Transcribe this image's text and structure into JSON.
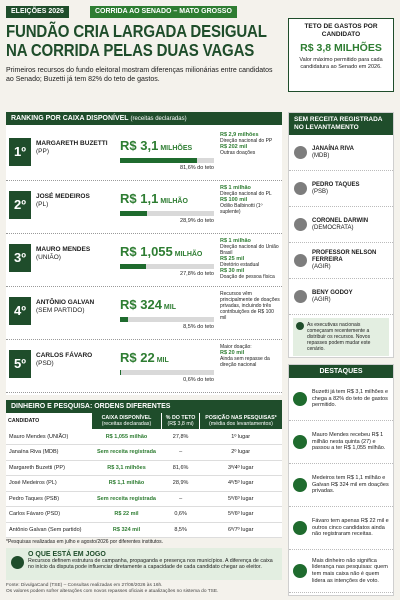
{
  "header": {
    "tag": "ELEIÇÕES 2026",
    "section": "CORRIDA AO SENADO – MATO GROSSO",
    "title": "FUNDÃO CRIA LARGADA DESIGUAL NA CORRIDA PELAS DUAS VAGAS",
    "subtitle": "Primeiros recursos do fundo eleitoral mostram diferenças milionárias entre candidatos ao Senado; Buzetti já tem 82% do teto de gastos.",
    "cap": {
      "label": "TETO DE GASTOS POR CANDIDATO",
      "value": "R$ 3,8 MILHÕES",
      "note": "Valor máximo permitido para cada candidatura ao Senado em 2026."
    }
  },
  "ranking": {
    "title": "RANKING POR CAIXA DISPONÍVEL",
    "subtitle": "(receitas declaradas)",
    "rows": [
      {
        "rank": "1º",
        "name": "MARGARETH BUZETTI",
        "party": "(PP)",
        "amount": "R$ 3,1",
        "unit": "MILHÕES",
        "share": 81.6,
        "share_label": "81,6% do teto",
        "details": [
          {
            "amount": "R$ 2,9 milhões",
            "text": "Direção nacional do PP"
          },
          {
            "amount": "R$ 202 mil",
            "text": "Outras doações"
          }
        ]
      },
      {
        "rank": "2º",
        "name": "JOSÉ MEDEIROS",
        "party": "(PL)",
        "amount": "R$ 1,1",
        "unit": "MILHÃO",
        "share": 28.9,
        "share_label": "28,9% do teto",
        "details": [
          {
            "amount": "R$ 1 milhão",
            "text": "Direção nacional do PL"
          },
          {
            "amount": "R$ 100 mil",
            "text": "Odilio Balbinotti (1º suplente)"
          }
        ]
      },
      {
        "rank": "3º",
        "name": "MAURO MENDES",
        "party": "(UNIÃO)",
        "amount": "R$ 1,055",
        "unit": "MILHÃO",
        "share": 27.8,
        "share_label": "27,8% do teto",
        "details": [
          {
            "amount": "R$ 1 milhão",
            "text": "Direção nacional do União Brasil"
          },
          {
            "amount": "R$ 25 mil",
            "text": "Diretório estadual"
          },
          {
            "amount": "R$ 30 mil",
            "text": "Doação de pessoa física"
          }
        ]
      },
      {
        "rank": "4º",
        "name": "ANTÔNIO GALVAN",
        "party": "(SEM PARTIDO)",
        "amount": "R$ 324",
        "unit": "MIL",
        "share": 8.5,
        "share_label": "8,5% do teto",
        "details": [
          {
            "text": "Recursos vêm principalmente de doações privadas, incluindo três contribuições de R$ 100 mil"
          }
        ]
      },
      {
        "rank": "5º",
        "name": "CARLOS FÁVARO",
        "party": "(PSD)",
        "amount": "R$ 22",
        "unit": "MIL",
        "share": 0.6,
        "share_label": "0,6% do teto",
        "details": [
          {
            "text": "Maior doação:"
          },
          {
            "amount": "R$ 20 mil",
            "text": "Ainda sem repasse da direção nacional"
          }
        ]
      }
    ]
  },
  "no_revenue": {
    "title": "SEM RECEITA REGISTRADA NO LEVANTAMENTO",
    "candidates": [
      {
        "name": "JANAÍNA RIVA",
        "party": "(MDB)"
      },
      {
        "name": "PEDRO TAQUES",
        "party": "(PSB)"
      },
      {
        "name": "CORONEL DARWIN",
        "party": "(DEMOCRATA)"
      },
      {
        "name": "PROFESSOR NELSON FERREIRA",
        "party": "(AGIR)"
      },
      {
        "name": "BENY GODOY",
        "party": "(AGIR)"
      }
    ],
    "note": "As executivas nacionais começaram recentemente a distribuir os recursos. Novos repasses podem mudar este cenário."
  },
  "highlights": {
    "title": "DESTAQUES",
    "items": [
      "Buzetti já tem R$ 3,1 milhões e chega a 82% do teto de gastos permitido.",
      "Mauro Mendes recebeu R$ 1 milhão nesta quinta (27) e passou a ter R$ 1,055 milhão.",
      "Medeiros tem R$ 1,1 milhão e Galvan R$ 324 mil em doações privadas.",
      "Fávaro tem apenas R$ 22 mil e outros cinco candidatos ainda não registraram receitas.",
      "Mais dinheiro não significa liderança nas pesquisas: quem tem mais caixa não é quem lidera as intenções de voto."
    ]
  },
  "table": {
    "title": "DINHEIRO E PESQUISA: ORDENS DIFERENTES",
    "columns": [
      {
        "title": "CANDIDATO"
      },
      {
        "title": "CAIXA DISPONÍVEL",
        "sub": "(receitas declaradas)"
      },
      {
        "title": "% DO TETO",
        "sub": "(R$ 3,8 mi)"
      },
      {
        "title": "POSIÇÃO NAS PESQUISAS*",
        "sub": "(média dos levantamentos)"
      }
    ],
    "rows": [
      [
        "Mauro Mendes (UNIÃO)",
        "R$ 1,055 milhão",
        "27,8%",
        "1º lugar"
      ],
      [
        "Janaína Riva (MDB)",
        "Sem receita registrada",
        "–",
        "2º lugar"
      ],
      [
        "Margareth Buzetti (PP)",
        "R$ 3,1 milhões",
        "81,6%",
        "3º/4º lugar"
      ],
      [
        "José Medeiros (PL)",
        "R$ 1,1 milhão",
        "28,9%",
        "4º/5º lugar"
      ],
      [
        "Pedro Taques (PSB)",
        "Sem receita registrada",
        "–",
        "5º/6º lugar"
      ],
      [
        "Carlos Fávaro (PSD)",
        "R$ 22 mil",
        "0,6%",
        "5º/6º lugar"
      ],
      [
        "Antônio Galvan (Sem partido)",
        "R$ 324 mil",
        "8,5%",
        "6º/7º lugar"
      ]
    ],
    "footnote": "*Pesquisas realizadas em julho e agosto/2026 por diferentes institutos."
  },
  "stakes": {
    "title": "O QUE ESTÁ EM JOGO",
    "text": "Recursos definem estrutura de campanha, propaganda e presença nos municípios. A diferença de caixa no início da disputa pode influenciar diretamente a capacidade de cada candidato chegar ao eleitor."
  },
  "footer": {
    "source": "Fonte: DivulgaCand (TSE) – Consultas realizadas em 27/08/2026 às 16h.",
    "note": "Os valores podem sofrer alterações com novos repasses oficiais e atualizações no sistema do TSE."
  }
}
